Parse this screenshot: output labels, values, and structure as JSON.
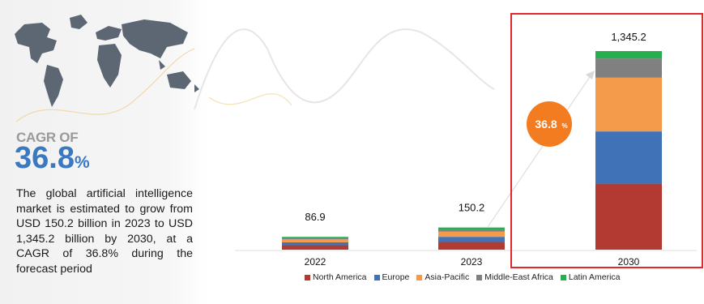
{
  "panel": {
    "cagr_label": "CAGR OF",
    "cagr_number": "36.8",
    "cagr_unit": "%",
    "description": "The global artificial intelligence market is estimated to grow from USD 150.2 billion in 2023 to USD 1,345.2 billion by 2030, at a CAGR of 36.8% during the forecast period"
  },
  "badge": {
    "number": "36.8",
    "unit": "%",
    "color": "#f47c20"
  },
  "highlight_color": "#e0282d",
  "chart_data": {
    "type": "bar",
    "stacked": true,
    "categories": [
      "2022",
      "2023",
      "2030"
    ],
    "totals": [
      "86.9",
      "150.2",
      "1,345.2"
    ],
    "total_values": [
      86.9,
      150.2,
      1345.2
    ],
    "series": [
      {
        "name": "North America",
        "color": "#b23a32",
        "values": [
          30.0,
          52.0,
          447.0
        ]
      },
      {
        "name": "Europe",
        "color": "#3f72b6",
        "values": [
          20.0,
          35.0,
          354.0
        ]
      },
      {
        "name": "Asia-Pacific",
        "color": "#f39b4a",
        "values": [
          20.0,
          35.0,
          364.0
        ]
      },
      {
        "name": "Middle-East Africa",
        "color": "#808080",
        "values": [
          9.0,
          15.0,
          130.0
        ]
      },
      {
        "name": "Latin America",
        "color": "#27ae4f",
        "values": [
          7.9,
          13.2,
          50.2
        ]
      }
    ],
    "ylim": [
      0,
      1345.2
    ],
    "highlighted_category": "2030",
    "legend_position": "bottom"
  }
}
